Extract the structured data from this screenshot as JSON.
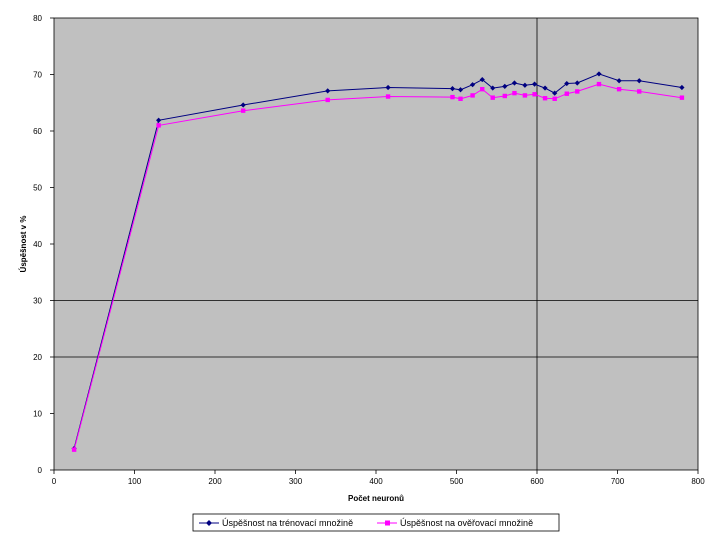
{
  "chart_data": {
    "type": "line",
    "title": "",
    "xlabel": "Počet neuronů",
    "ylabel": "Úspěšnost v %",
    "xlim": [
      0,
      800
    ],
    "ylim": [
      0,
      80
    ],
    "xticks": [
      0,
      100,
      200,
      300,
      400,
      500,
      600,
      700,
      800
    ],
    "yticks": [
      0,
      10,
      20,
      30,
      40,
      50,
      60,
      70,
      80
    ],
    "grid": "y at 20 and 30; x at 600",
    "legend_position": "bottom",
    "colors": {
      "plot_bg": "#c0c0c0",
      "series1": "#000080",
      "series2": "#ff00ff"
    },
    "series": [
      {
        "name": "Úspěšnost na trénovací množině",
        "marker": "diamond",
        "x": [
          25,
          130,
          235,
          340,
          415,
          495,
          505,
          520,
          532,
          545,
          560,
          572,
          585,
          597,
          610,
          622,
          637,
          650,
          677,
          702,
          727,
          780
        ],
        "y": [
          3.8,
          61.9,
          64.6,
          67.1,
          67.7,
          67.5,
          67.3,
          68.2,
          69.1,
          67.6,
          67.9,
          68.5,
          68.1,
          68.3,
          67.6,
          66.7,
          68.4,
          68.5,
          70.1,
          68.9,
          68.9,
          67.7
        ]
      },
      {
        "name": "Úspěšnost na ověřovací množině",
        "marker": "square",
        "x": [
          25,
          130,
          235,
          340,
          415,
          495,
          505,
          520,
          532,
          545,
          560,
          572,
          585,
          597,
          610,
          622,
          637,
          650,
          677,
          702,
          727,
          780
        ],
        "y": [
          3.6,
          61.0,
          63.6,
          65.5,
          66.1,
          66.0,
          65.7,
          66.3,
          67.4,
          65.9,
          66.2,
          66.7,
          66.3,
          66.5,
          65.8,
          65.7,
          66.6,
          67.0,
          68.3,
          67.4,
          67.0,
          65.9
        ]
      }
    ]
  }
}
